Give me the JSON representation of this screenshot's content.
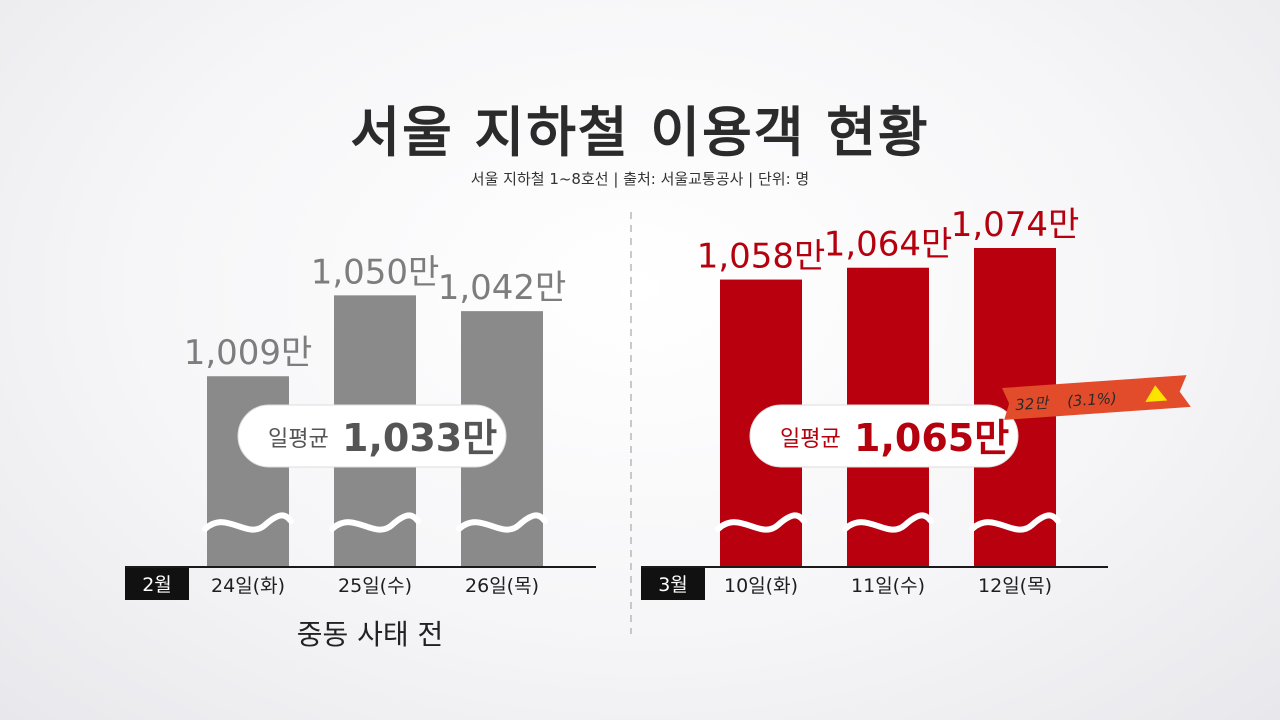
{
  "title": "서울 지하철 이용객 현황",
  "subtitle": "서울 지하철 1~8호선 | 출처: 서울교통공사 | 단위: 명",
  "colors": {
    "before": "#8a8a8a",
    "after": "#b8000e",
    "label_before": "#7d7d7d",
    "label_after": "#b5000e"
  },
  "chart_data": [
    {
      "type": "bar",
      "month_label": "2월",
      "period_label": "중동 사태 전",
      "categories": [
        "24일(화)",
        "25일(수)",
        "26일(목)"
      ],
      "values": [
        1009,
        1050,
        1042
      ],
      "value_labels": [
        "1,009만",
        "1,050만",
        "1,042만"
      ],
      "average": {
        "label": "일평균",
        "value": 1033,
        "value_label": "1,033만"
      },
      "unit": "만"
    },
    {
      "type": "bar",
      "month_label": "3월",
      "categories": [
        "10일(화)",
        "11일(수)",
        "12일(목)"
      ],
      "values": [
        1058,
        1064,
        1074
      ],
      "value_labels": [
        "1,058만",
        "1,064만",
        "1,074만"
      ],
      "average": {
        "label": "일평균",
        "value": 1065,
        "value_label": "1,065만"
      },
      "change": {
        "value_label": "32만",
        "percent_label": "(3.1%)",
        "direction": "up"
      },
      "unit": "만"
    }
  ]
}
